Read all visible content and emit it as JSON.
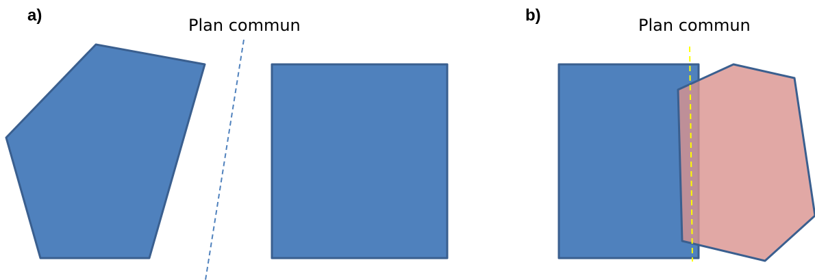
{
  "panels": [
    {
      "label": "a)",
      "plane_label": "Plan commun",
      "plane_color": "#4f81bd",
      "plane_style": "dashed"
    },
    {
      "label": "b)",
      "plane_label": "Plan commun",
      "plane_color": "#ffff00",
      "plane_style": "dashed"
    }
  ],
  "colors": {
    "shape_fill": "#4f81bd",
    "shape_stroke": "#3a5f8f",
    "overlap_fill": "#d9928f",
    "overlap_stroke": "#3a5f8f",
    "overlap_opacity": "0.8"
  }
}
